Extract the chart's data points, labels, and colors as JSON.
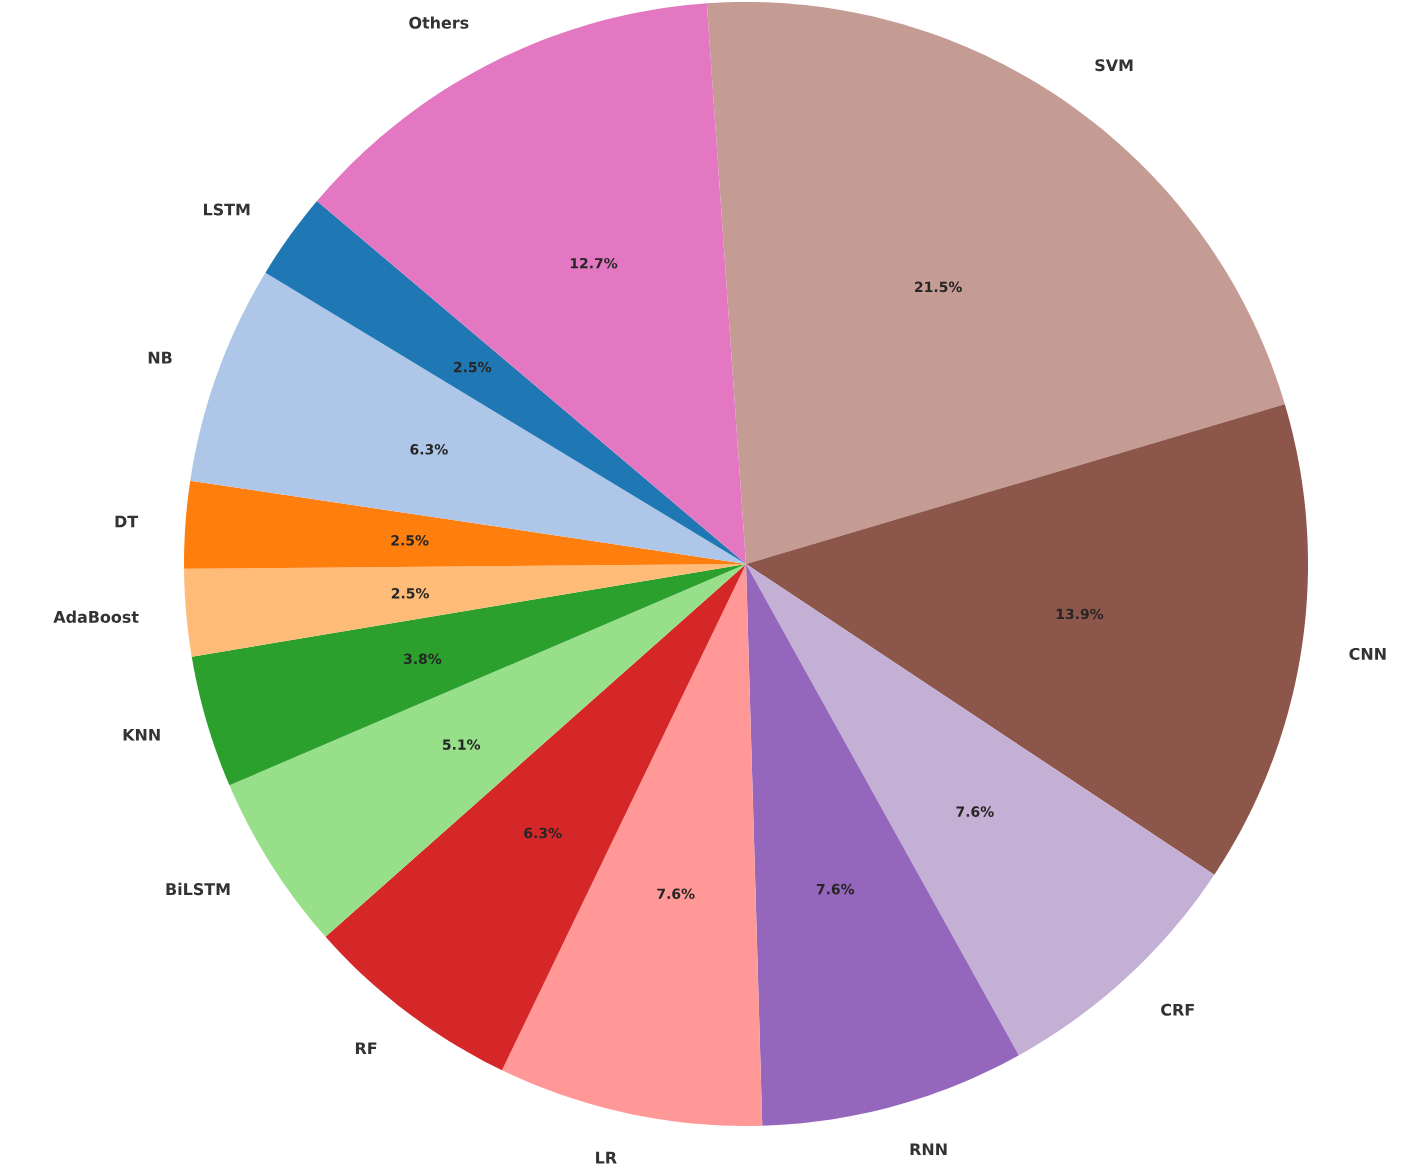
{
  "chart_data": {
    "type": "pie",
    "categories": [
      "SVM",
      "CNN",
      "CRF",
      "RNN",
      "LR",
      "RF",
      "BiLSTM",
      "KNN",
      "AdaBoost",
      "DT",
      "NB",
      "LSTM",
      "Others"
    ],
    "values": [
      21.5,
      13.9,
      7.6,
      7.6,
      7.6,
      6.3,
      5.1,
      3.8,
      2.5,
      2.5,
      6.3,
      2.5,
      12.7
    ],
    "value_labels": [
      "21.5%",
      "13.9%",
      "7.6%",
      "7.6%",
      "7.6%",
      "6.3%",
      "5.1%",
      "3.8%",
      "2.5%",
      "2.5%",
      "6.3%",
      "2.5%",
      "12.7%"
    ],
    "colors": [
      "#c49c94",
      "#8c564b",
      "#c5b0d5",
      "#9467bd",
      "#ff9896",
      "#d62728",
      "#98df8a",
      "#2ca02c",
      "#ffbb78",
      "#ff7f0e",
      "#aec7e8",
      "#1f77b4",
      "#e377c2"
    ]
  }
}
